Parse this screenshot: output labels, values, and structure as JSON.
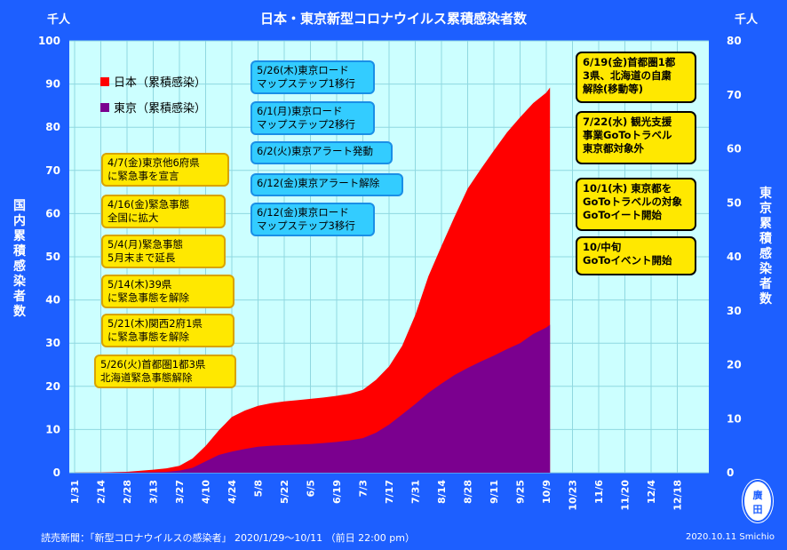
{
  "chart_data": {
    "type": "area",
    "title": "日本・東京新型コロナウイルス累積感染者数",
    "left_unit": "千人",
    "right_unit": "千人",
    "ylabel_left": "国内累積感染者数",
    "ylabel_right": "東京累積感染者数",
    "ylim_left": [
      0,
      100
    ],
    "ylim_right": [
      0,
      80
    ],
    "yticks_left": [
      0,
      10,
      20,
      30,
      40,
      50,
      60,
      70,
      80,
      90,
      100
    ],
    "yticks_right": [
      0,
      10,
      20,
      30,
      40,
      50,
      60,
      70,
      80
    ],
    "xticks": [
      "1/31",
      "2/14",
      "2/28",
      "3/13",
      "3/27",
      "4/10",
      "4/24",
      "5/8",
      "5/22",
      "6/5",
      "6/19",
      "7/3",
      "7/17",
      "7/31",
      "8/14",
      "8/28",
      "9/11",
      "9/25",
      "10/9",
      "10/23",
      "11/6",
      "11/20",
      "12/4",
      "12/18"
    ],
    "grid": true,
    "series": [
      {
        "name": "日本（累積感染）",
        "color": "#ff0000",
        "axis": "left",
        "x": [
          "1/31",
          "2/14",
          "2/28",
          "3/13",
          "3/20",
          "3/27",
          "4/3",
          "4/10",
          "4/17",
          "4/24",
          "5/1",
          "5/8",
          "5/15",
          "5/22",
          "5/29",
          "6/5",
          "6/12",
          "6/19",
          "6/26",
          "7/3",
          "7/10",
          "7/17",
          "7/24",
          "7/31",
          "8/7",
          "8/14",
          "8/21",
          "8/28",
          "9/4",
          "9/11",
          "9/18",
          "9/25",
          "10/2",
          "10/9",
          "10/11"
        ],
        "values": [
          0.02,
          0.05,
          0.2,
          0.7,
          1.0,
          1.6,
          3.3,
          6.2,
          9.8,
          12.9,
          14.4,
          15.5,
          16.1,
          16.5,
          16.8,
          17.1,
          17.4,
          17.8,
          18.3,
          19.2,
          21.5,
          24.6,
          29.4,
          36.5,
          45.5,
          52.5,
          59.3,
          65.8,
          70.3,
          74.6,
          78.8,
          82.3,
          85.6,
          88.0,
          89.2
        ]
      },
      {
        "name": "東京（累積感染）",
        "color": "#7b008f",
        "axis": "right",
        "x": [
          "1/31",
          "2/14",
          "2/28",
          "3/13",
          "3/20",
          "3/27",
          "4/3",
          "4/10",
          "4/17",
          "4/24",
          "5/1",
          "5/8",
          "5/15",
          "5/22",
          "5/29",
          "6/5",
          "6/12",
          "6/19",
          "6/26",
          "7/3",
          "7/10",
          "7/17",
          "7/24",
          "7/31",
          "8/7",
          "8/14",
          "8/21",
          "8/28",
          "9/4",
          "9/11",
          "9/18",
          "9/25",
          "10/2",
          "10/9",
          "10/11"
        ],
        "values": [
          0.0,
          0.0,
          0.04,
          0.1,
          0.15,
          0.4,
          0.9,
          2.1,
          3.3,
          3.9,
          4.4,
          4.8,
          5.0,
          5.1,
          5.2,
          5.3,
          5.5,
          5.7,
          6.0,
          6.4,
          7.4,
          8.9,
          10.8,
          12.7,
          14.8,
          16.5,
          18.1,
          19.4,
          20.6,
          21.7,
          22.9,
          24.0,
          25.7,
          26.9,
          27.4
        ]
      }
    ],
    "annotations_left": [
      "4/7(金)東京他6府県\nに緊急事を宣言",
      "4/16(金)緊急事態\n全国に拡大",
      "5/4(月)緊急事態\n5月末まで延長",
      "5/14(木)39県\nに緊急事態を解除",
      "5/21(木)関西2府1県\nに緊急事態を解除",
      "5/26(火)首都圏1都3県\n北海道緊急事態解除"
    ],
    "annotations_middle": [
      "5/26(木)東京ロード\nマップステップ1移行",
      "6/1(月)東京ロード\nマップステップ2移行",
      "6/2(火)東京アラート発動",
      "6/12(金)東京アラート解除",
      "6/12(金)東京ロード\nマップステップ3移行"
    ],
    "annotations_right": [
      "6/19(金)首都圏1都\n3県、北海道の自粛\n解除(移動等)",
      "7/22(水) 観光支援\n事業GoToトラベル\n東京都対象外",
      "10/1(木) 東京都を\nGoToトラベルの対象\nGoToイート開始",
      "10/中旬\nGoToイベント開始"
    ]
  },
  "source": "読売新聞：「新型コロナウイルスの感染者」 2020/1/29～10/11 （前日 22:00 pm）",
  "credit": "2020.10.11  Smichio",
  "seal": [
    "廣",
    "田"
  ]
}
